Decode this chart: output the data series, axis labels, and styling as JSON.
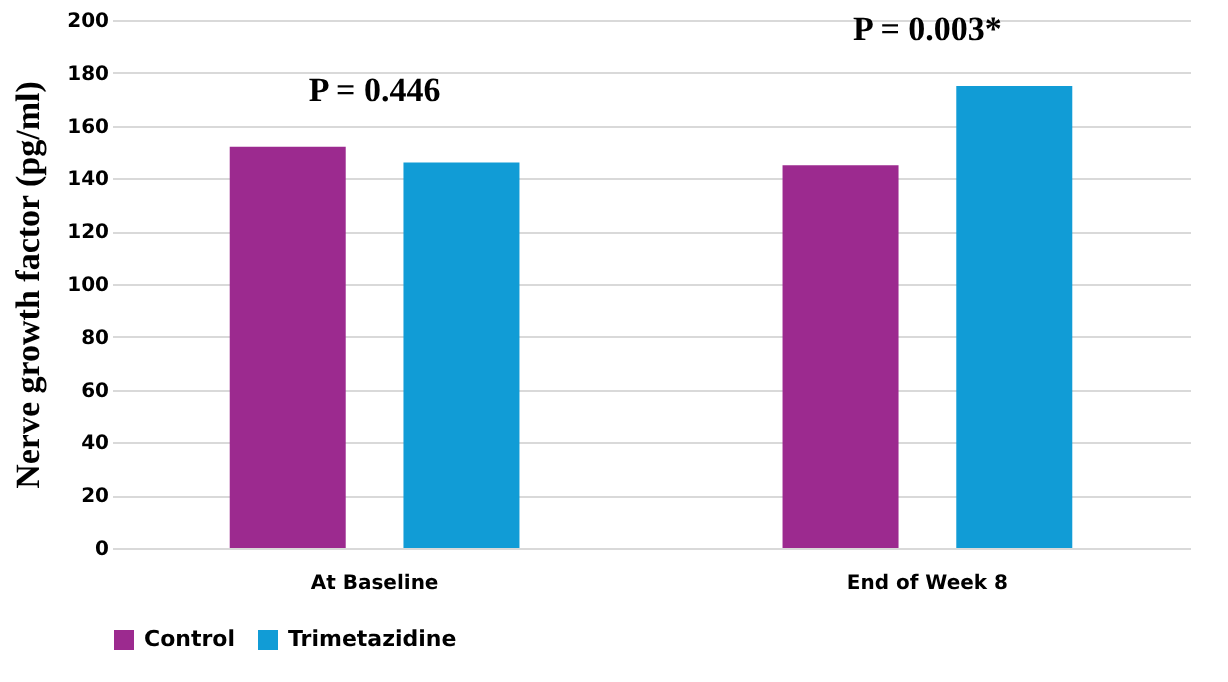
{
  "chart_data": {
    "type": "bar",
    "ylabel": "Nerve growth factor  (pg/ml)",
    "categories": [
      "At Baseline",
      "End of Week 8"
    ],
    "series": [
      {
        "name": "Control",
        "color": "#9c2a8f",
        "values": [
          152,
          145
        ]
      },
      {
        "name": "Trimetazidine",
        "color": "#119cd6",
        "values": [
          146,
          175
        ]
      }
    ],
    "ylim": [
      0,
      200
    ],
    "yticks": [
      0,
      20,
      40,
      60,
      80,
      100,
      120,
      140,
      160,
      180,
      200
    ],
    "grid": "y",
    "legend": "bottom",
    "annotations": [
      "P = 0.446",
      "P = 0.003*"
    ]
  }
}
